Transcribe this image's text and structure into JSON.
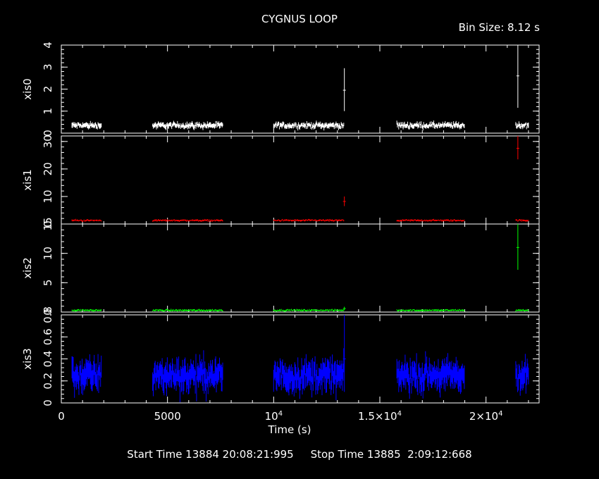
{
  "chart_data": {
    "type": "line",
    "title": "CYGNUS LOOP",
    "annotation": "Bin Size: 8.12 s",
    "xlabel": "Time (s)",
    "xlim": [
      0,
      22500
    ],
    "x_ticks": [
      {
        "value": 0,
        "label": "0"
      },
      {
        "value": 5000,
        "label": "5000"
      },
      {
        "value": 10000,
        "label": "10⁴",
        "base": "10",
        "exp": "4"
      },
      {
        "value": 15000,
        "label": "1.5×10⁴",
        "base": "1.5×10",
        "exp": "4"
      },
      {
        "value": 20000,
        "label": "2×10⁴",
        "base": "2×10",
        "exp": "4"
      }
    ],
    "start_time": "Start Time 13884 20:08:21:995",
    "stop_time": "Stop Time 13885  2:09:12:668",
    "gti": [
      [
        500,
        1900
      ],
      [
        4300,
        7600
      ],
      [
        10000,
        13300
      ],
      [
        15800,
        19000
      ],
      [
        21400,
        22000
      ]
    ],
    "panels": [
      {
        "ylabel": "xis0",
        "color": "#ffffff",
        "ylim": [
          0,
          4
        ],
        "ticks": [
          0,
          1,
          2,
          3,
          4
        ],
        "tick_labels": [
          "0",
          "1",
          "2",
          "3",
          "4"
        ],
        "mean": 0.35,
        "scatter": 0.1,
        "spikes": [
          {
            "x": 13330,
            "low": 1.0,
            "high": 2.95,
            "mid": 1.95
          },
          {
            "x": 21500,
            "low": 1.15,
            "high": 4.0,
            "mid": 2.6
          }
        ]
      },
      {
        "ylabel": "xis1",
        "color": "#ff0000",
        "ylim": [
          0,
          32
        ],
        "ticks": [
          0,
          10,
          20,
          30
        ],
        "tick_labels": [
          "0",
          "10",
          "20",
          "30"
        ],
        "mean": 1.3,
        "scatter": 0.25,
        "spikes": [
          {
            "x": 13330,
            "low": 6.5,
            "high": 10.0,
            "mid": 8.2
          },
          {
            "x": 21500,
            "low": 23.5,
            "high": 32.0,
            "mid": 27.5
          }
        ]
      },
      {
        "ylabel": "xis2",
        "color": "#00ff00",
        "ylim": [
          0,
          15
        ],
        "ticks": [
          0,
          5,
          10,
          15
        ],
        "tick_labels": [
          "0",
          "5",
          "10",
          "15"
        ],
        "mean": 0.3,
        "scatter": 0.12,
        "spikes": [
          {
            "x": 13330,
            "low": 0.3,
            "high": 0.9,
            "mid": 0.6
          },
          {
            "x": 21500,
            "low": 7.2,
            "high": 15.0,
            "mid": 11.0
          }
        ]
      },
      {
        "ylabel": "xis3",
        "color": "#0000ff",
        "ylim": [
          0,
          0.8
        ],
        "ticks": [
          0,
          0.2,
          0.4,
          0.6,
          0.8
        ],
        "tick_labels": [
          "0",
          "0.2",
          "0.4",
          "0.6",
          "0.8"
        ],
        "mean": 0.25,
        "scatter": 0.1,
        "spikes": [
          {
            "x": 13330,
            "low": 0.1,
            "high": 0.8,
            "mid": 0.4
          }
        ]
      }
    ]
  }
}
